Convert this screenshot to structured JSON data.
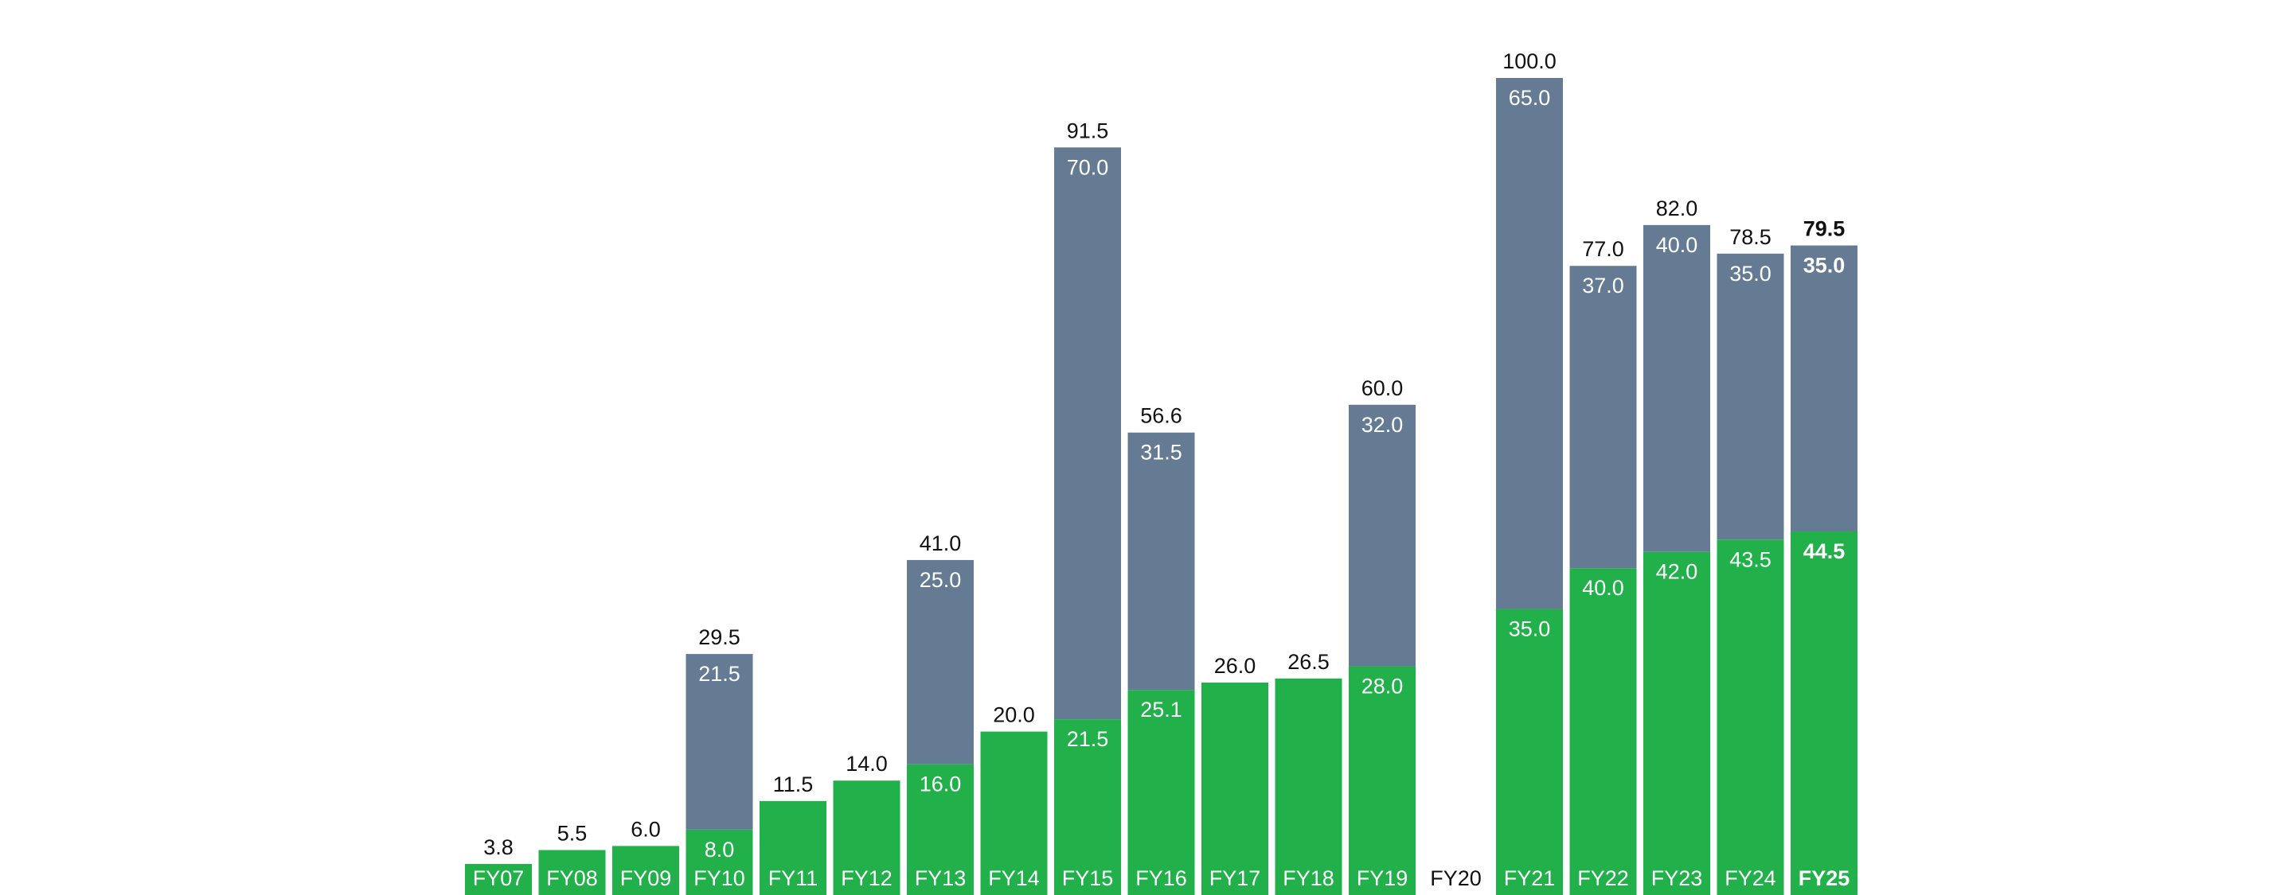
{
  "chart_data": {
    "type": "bar",
    "stacked": true,
    "categories": [
      "FY07",
      "FY08",
      "FY09",
      "FY10",
      "FY11",
      "FY12",
      "FY13",
      "FY14",
      "FY15",
      "FY16",
      "FY17",
      "FY18",
      "FY19",
      "FY20",
      "FY21",
      "FY22",
      "FY23",
      "FY24",
      "FY25"
    ],
    "series": [
      {
        "color": "#22b04b",
        "values": [
          3.8,
          5.5,
          6.0,
          8.0,
          11.5,
          14.0,
          16.0,
          20.0,
          21.5,
          25.1,
          26.0,
          26.5,
          28.0,
          null,
          35.0,
          40.0,
          42.0,
          43.5,
          44.5
        ]
      },
      {
        "color": "#657b94",
        "values": [
          null,
          null,
          null,
          21.5,
          null,
          null,
          25.0,
          null,
          70.0,
          31.5,
          null,
          null,
          32.0,
          null,
          65.0,
          37.0,
          40.0,
          35.0,
          35.0
        ]
      }
    ],
    "totals": [
      3.8,
      5.5,
      6.0,
      29.5,
      11.5,
      14.0,
      41.0,
      20.0,
      91.5,
      56.6,
      26.0,
      26.5,
      60.0,
      null,
      100.0,
      77.0,
      82.0,
      78.5,
      79.5
    ],
    "segment_labels_shown": {
      "green": [
        false,
        false,
        false,
        true,
        false,
        false,
        true,
        false,
        true,
        true,
        false,
        false,
        true,
        false,
        true,
        true,
        true,
        true,
        true
      ],
      "blue": [
        false,
        false,
        false,
        true,
        false,
        false,
        true,
        false,
        true,
        true,
        false,
        false,
        true,
        false,
        true,
        true,
        true,
        true,
        true
      ]
    },
    "highlight_category": "FY25",
    "ylim": [
      0,
      100
    ],
    "axes_visible": false,
    "grid": false,
    "legend": "none"
  }
}
